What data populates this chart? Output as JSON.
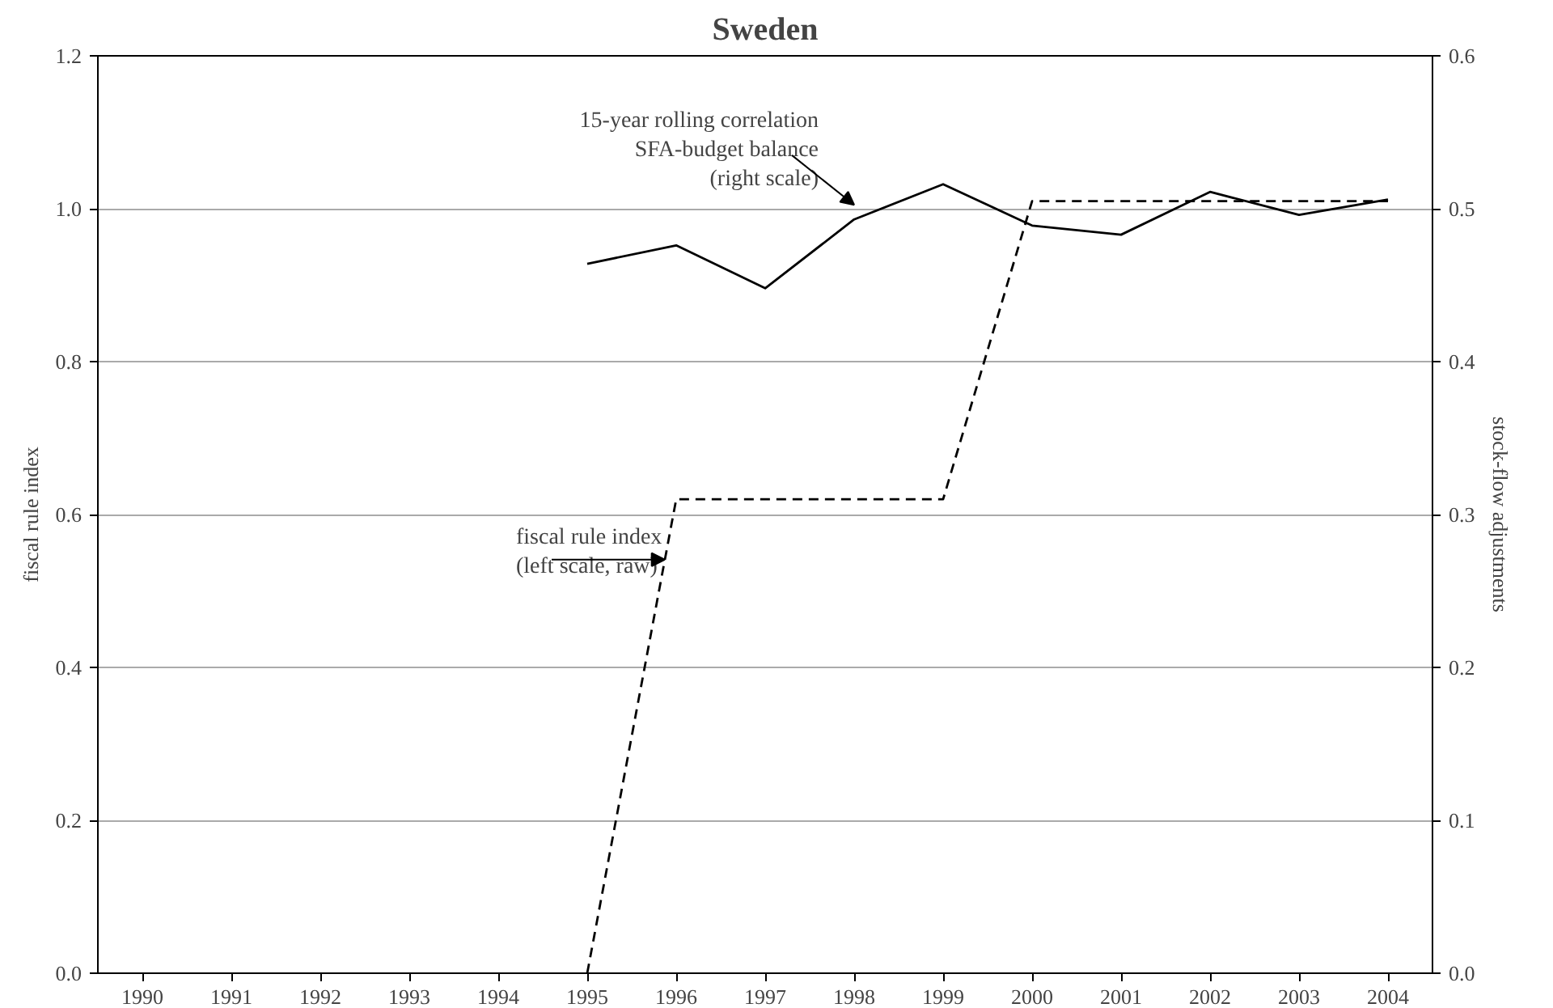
{
  "chart_data": {
    "type": "line",
    "title": "Sweden",
    "ylabel": "fiscal rule index",
    "y2label": "stock-flow adjustments",
    "categories": [
      "1990",
      "1991",
      "1992",
      "1993",
      "1994",
      "1995",
      "1996",
      "1997",
      "1998",
      "1999",
      "2000",
      "2001",
      "2002",
      "2003",
      "2004"
    ],
    "series": [
      {
        "color": "#000000",
        "line_style": "dashed",
        "values": [
          null,
          null,
          null,
          null,
          null,
          0,
          0.62,
          0.62,
          0.62,
          0.62,
          1.01,
          1.01,
          1.01,
          1.01,
          1.01
        ]
      },
      {
        "color": "#000000",
        "line_style": "solid",
        "axis": "y2",
        "values": [
          null,
          null,
          null,
          null,
          null,
          0.464,
          0.476,
          0.448,
          0.493,
          0.516,
          0.489,
          0.483,
          0.511,
          0.496,
          0.506
        ]
      }
    ],
    "ylim": [
      0,
      1.2
    ],
    "yticks": [
      {
        "value": 0,
        "label": "0.0"
      },
      0.2,
      0.4,
      0.6,
      0.8,
      {
        "value": 1,
        "label": "1.0"
      },
      1.2
    ],
    "y2lim": [
      0,
      0.6
    ],
    "y2ticks": [
      {
        "value": 0,
        "label": "0.0"
      },
      0.1,
      0.2,
      0.3,
      0.4,
      0.5,
      0.6
    ],
    "grid": "y",
    "annotations": [
      "15-year rolling correlation\nSFA-budget balance\n(right scale)",
      "fiscal rule index\n(left scale, raw)"
    ]
  }
}
